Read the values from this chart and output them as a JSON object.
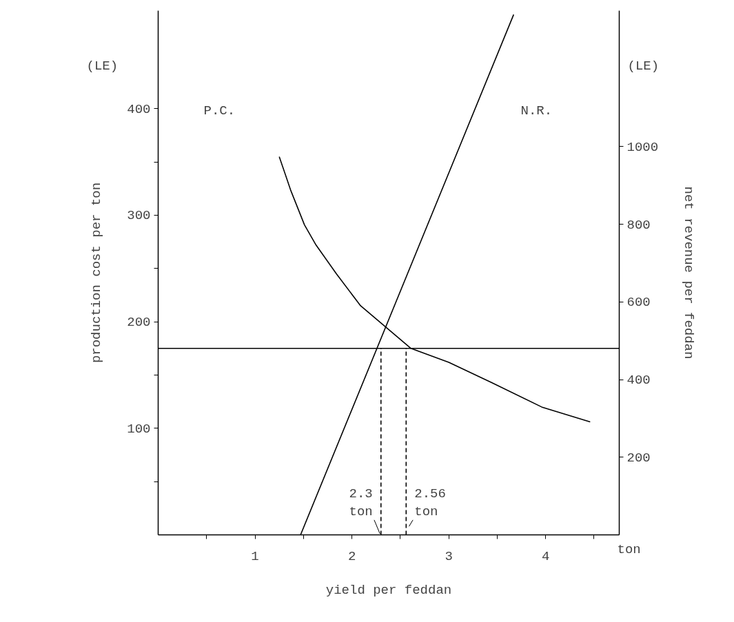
{
  "chart_data": {
    "type": "line",
    "xlabel": "yield per feddan",
    "ylabel": "production cost per ton",
    "y2label": "net revenue per feddan",
    "xlim": [
      0,
      4.76
    ],
    "ylim": [
      0,
      492
    ],
    "y2lim": [
      0,
      1350
    ],
    "xticks": [
      {
        "value": 0.5,
        "label": null
      },
      1,
      {
        "value": 1.5,
        "label": null
      },
      2,
      {
        "value": 2.5,
        "label": null
      },
      3,
      {
        "value": 3.5,
        "label": null
      },
      4,
      {
        "value": 4.5,
        "label": null
      }
    ],
    "yticks": [
      {
        "value": 50,
        "label": null
      },
      100,
      {
        "value": 150,
        "label": null
      },
      200,
      {
        "value": 250,
        "label": null
      },
      300,
      {
        "value": 350,
        "label": null
      },
      400
    ],
    "y2ticks": [
      200,
      400,
      600,
      800,
      1000
    ],
    "grid": false,
    "marker": "none",
    "series": [
      {
        "axis": "y",
        "color": "#000000",
        "line_style": "solid",
        "x": [
          1.25,
          1.37,
          1.51,
          1.63,
          1.84,
          2.09,
          2.35,
          2.61,
          3.0,
          3.44,
          3.96,
          4.46
        ],
        "values": [
          355,
          323,
          291,
          272,
          245,
          215,
          195,
          175,
          162,
          143,
          120,
          106
        ]
      },
      {
        "axis": "y2",
        "color": "#000000",
        "line_style": "solid",
        "x": [
          1.47,
          3.67
        ],
        "values": [
          0,
          1340
        ]
      },
      {
        "axis": "y",
        "color": "#000000",
        "line_style": "dashed",
        "x": [
          2.3,
          2.3
        ],
        "values": [
          0,
          175
        ]
      },
      {
        "axis": "y",
        "color": "#000000",
        "line_style": "dashed",
        "x": [
          2.56,
          2.56
        ],
        "values": [
          0,
          175
        ]
      }
    ],
    "ref_lines": [
      {
        "axis": "y",
        "value": 175,
        "color": "#000000",
        "line_style": "solid"
      }
    ],
    "annotations": [
      "(LE)",
      "(LE)",
      "ton",
      "P.C.",
      "N.R.",
      {
        "text": "2.3\nton",
        "x": 2.3,
        "y": 0
      },
      {
        "text": "2.56\nton",
        "x": 2.56,
        "y": 0
      }
    ]
  }
}
